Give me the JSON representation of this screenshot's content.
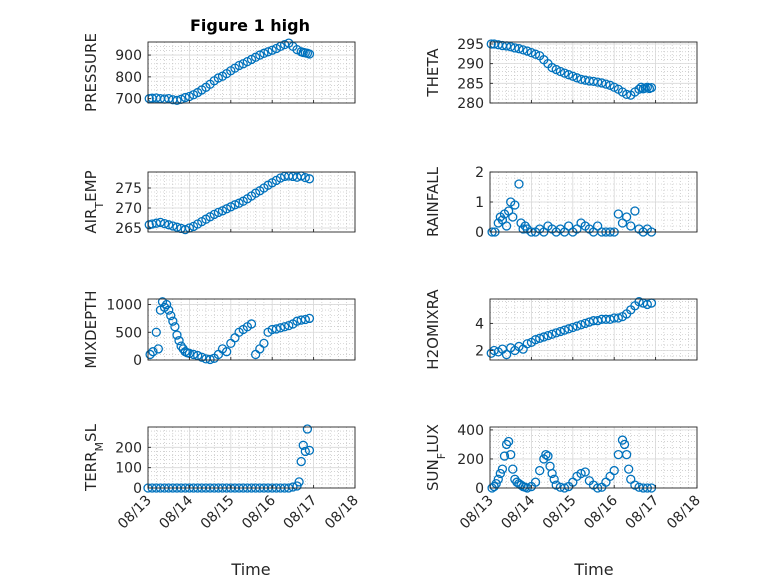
{
  "figure": {
    "title": "Figure 1 high",
    "marker_color": "#0072BD",
    "xlabel": "Time"
  },
  "chart_data": [
    {
      "type": "scatter",
      "ylabel": "PRESSURE",
      "ylim": [
        680,
        960
      ],
      "yticks": [
        700,
        800,
        900
      ],
      "xlim": [
        0,
        5
      ],
      "xticks": [
        "08/13",
        "08/14",
        "08/15",
        "08/16",
        "08/17",
        "08/18"
      ],
      "grid": true,
      "x": [
        0.03,
        0.1,
        0.2,
        0.3,
        0.4,
        0.5,
        0.6,
        0.7,
        0.8,
        0.9,
        1.0,
        1.1,
        1.2,
        1.3,
        1.4,
        1.5,
        1.6,
        1.7,
        1.8,
        1.9,
        2.0,
        2.1,
        2.2,
        2.3,
        2.4,
        2.5,
        2.6,
        2.7,
        2.8,
        2.9,
        3.0,
        3.1,
        3.2,
        3.3,
        3.4,
        3.5,
        3.6,
        3.7,
        3.75,
        3.8,
        3.85,
        3.9
      ],
      "y": [
        700,
        702,
        703,
        700,
        698,
        700,
        695,
        692,
        697,
        705,
        710,
        718,
        728,
        740,
        752,
        766,
        782,
        795,
        803,
        815,
        828,
        840,
        852,
        860,
        870,
        880,
        890,
        900,
        908,
        915,
        922,
        930,
        940,
        948,
        955,
        940,
        925,
        915,
        912,
        910,
        908,
        905
      ]
    },
    {
      "type": "scatter",
      "ylabel": "THETA",
      "ylim": [
        280,
        295.5
      ],
      "yticks": [
        280,
        285,
        290,
        295
      ],
      "xlim": [
        0,
        5
      ],
      "xticks": [
        "08/13",
        "08/14",
        "08/15",
        "08/16",
        "08/17",
        "08/18"
      ],
      "grid": true,
      "x": [
        0.03,
        0.1,
        0.2,
        0.3,
        0.4,
        0.5,
        0.6,
        0.7,
        0.8,
        0.9,
        1.0,
        1.1,
        1.2,
        1.3,
        1.4,
        1.5,
        1.6,
        1.7,
        1.8,
        1.9,
        2.0,
        2.1,
        2.2,
        2.3,
        2.4,
        2.5,
        2.6,
        2.7,
        2.8,
        2.9,
        3.0,
        3.1,
        3.2,
        3.3,
        3.4,
        3.5,
        3.6,
        3.65,
        3.7,
        3.75,
        3.8,
        3.85,
        3.9
      ],
      "y": [
        295,
        295,
        294.8,
        294.6,
        294.5,
        294.3,
        294,
        293.8,
        293.5,
        293.2,
        292.8,
        292.4,
        292,
        291,
        290,
        289,
        288.5,
        288,
        287.6,
        287.2,
        286.8,
        286.4,
        286,
        285.8,
        285.6,
        285.5,
        285.3,
        285.1,
        284.8,
        284.5,
        284,
        283.5,
        282.8,
        282.2,
        282,
        282.8,
        283.5,
        284,
        283.6,
        283.8,
        284,
        283.7,
        283.9
      ]
    },
    {
      "type": "scatter",
      "ylabel": "AIR_TEMP",
      "ylim": [
        264,
        279
      ],
      "yticks": [
        265,
        270,
        275
      ],
      "xlim": [
        0,
        5
      ],
      "xticks": [
        "08/13",
        "08/14",
        "08/15",
        "08/16",
        "08/17",
        "08/18"
      ],
      "grid": true,
      "x": [
        0.03,
        0.1,
        0.2,
        0.3,
        0.4,
        0.5,
        0.6,
        0.7,
        0.8,
        0.9,
        1.0,
        1.1,
        1.2,
        1.3,
        1.4,
        1.5,
        1.6,
        1.7,
        1.8,
        1.9,
        2.0,
        2.1,
        2.2,
        2.3,
        2.4,
        2.5,
        2.6,
        2.7,
        2.8,
        2.9,
        3.0,
        3.1,
        3.2,
        3.3,
        3.4,
        3.5,
        3.6,
        3.7,
        3.8,
        3.9
      ],
      "y": [
        265.8,
        266,
        266.2,
        266.4,
        266.1,
        265.8,
        265.5,
        265.2,
        264.9,
        264.6,
        265,
        265.4,
        266,
        266.6,
        267.2,
        267.8,
        268.4,
        268.9,
        269.3,
        269.8,
        270.3,
        270.8,
        271.2,
        271.7,
        272.3,
        273,
        273.7,
        274.3,
        275,
        275.7,
        276.3,
        276.9,
        277.5,
        277.9,
        278,
        277.9,
        277.7,
        278,
        277.6,
        277.3
      ]
    },
    {
      "type": "scatter",
      "ylabel": "RAINFALL",
      "ylim": [
        0,
        2
      ],
      "yticks": [
        0,
        1,
        2
      ],
      "xlim": [
        0,
        5
      ],
      "xticks": [
        "08/13",
        "08/14",
        "08/15",
        "08/16",
        "08/17",
        "08/18"
      ],
      "grid": true,
      "x": [
        0.05,
        0.12,
        0.2,
        0.25,
        0.3,
        0.35,
        0.4,
        0.45,
        0.5,
        0.55,
        0.6,
        0.7,
        0.75,
        0.8,
        0.85,
        0.9,
        1.0,
        1.1,
        1.2,
        1.3,
        1.4,
        1.5,
        1.6,
        1.7,
        1.8,
        1.9,
        2.0,
        2.1,
        2.2,
        2.3,
        2.4,
        2.5,
        2.6,
        2.7,
        2.8,
        2.9,
        3.0,
        3.1,
        3.2,
        3.3,
        3.4,
        3.5,
        3.6,
        3.7,
        3.8,
        3.9
      ],
      "y": [
        0,
        0,
        0.3,
        0.5,
        0.4,
        0.6,
        0.2,
        0.7,
        1.0,
        0.5,
        0.9,
        1.6,
        0.3,
        0.1,
        0.2,
        0.1,
        0,
        0,
        0.1,
        0,
        0.2,
        0.1,
        0,
        0.1,
        0,
        0.2,
        0,
        0.1,
        0.3,
        0.2,
        0.1,
        0,
        0.2,
        0,
        0,
        0,
        0,
        0.6,
        0.3,
        0.5,
        0.2,
        0.7,
        0.1,
        0,
        0.1,
        0
      ]
    },
    {
      "type": "scatter",
      "ylabel": "MIXDEPTH",
      "ylim": [
        0,
        1100
      ],
      "yticks": [
        0,
        500,
        1000
      ],
      "xlim": [
        0,
        5
      ],
      "xticks": [
        "08/13",
        "08/14",
        "08/15",
        "08/16",
        "08/17",
        "08/18"
      ],
      "grid": true,
      "x": [
        0.05,
        0.12,
        0.2,
        0.25,
        0.3,
        0.35,
        0.4,
        0.45,
        0.5,
        0.55,
        0.6,
        0.65,
        0.7,
        0.75,
        0.8,
        0.85,
        0.9,
        0.95,
        1.0,
        1.1,
        1.2,
        1.3,
        1.4,
        1.5,
        1.6,
        1.7,
        1.8,
        1.9,
        2.0,
        2.1,
        2.2,
        2.3,
        2.4,
        2.5,
        2.6,
        2.7,
        2.8,
        2.9,
        3.0,
        3.1,
        3.2,
        3.3,
        3.4,
        3.5,
        3.6,
        3.7,
        3.8,
        3.9
      ],
      "y": [
        100,
        150,
        500,
        200,
        900,
        1050,
        950,
        1000,
        900,
        800,
        700,
        600,
        450,
        350,
        250,
        200,
        150,
        130,
        120,
        100,
        80,
        50,
        20,
        10,
        30,
        100,
        200,
        150,
        300,
        400,
        500,
        550,
        600,
        650,
        100,
        200,
        300,
        500,
        550,
        560,
        580,
        600,
        620,
        650,
        700,
        720,
        730,
        750
      ]
    },
    {
      "type": "scatter",
      "ylabel": "H2OMIXRA",
      "ylim": [
        1.3,
        5.8
      ],
      "yticks": [
        2,
        4
      ],
      "xlim": [
        0,
        5
      ],
      "xticks": [
        "08/13",
        "08/14",
        "08/15",
        "08/16",
        "08/17",
        "08/18"
      ],
      "grid": true,
      "x": [
        0.03,
        0.1,
        0.2,
        0.3,
        0.4,
        0.5,
        0.6,
        0.7,
        0.8,
        0.9,
        1.0,
        1.1,
        1.2,
        1.3,
        1.4,
        1.5,
        1.6,
        1.7,
        1.8,
        1.9,
        2.0,
        2.1,
        2.2,
        2.3,
        2.4,
        2.5,
        2.6,
        2.7,
        2.8,
        2.9,
        3.0,
        3.1,
        3.2,
        3.3,
        3.4,
        3.5,
        3.6,
        3.7,
        3.8,
        3.9
      ],
      "y": [
        1.8,
        2.0,
        1.9,
        2.1,
        1.7,
        2.2,
        2.0,
        2.3,
        2.1,
        2.5,
        2.6,
        2.8,
        2.9,
        3.0,
        3.1,
        3.2,
        3.3,
        3.4,
        3.5,
        3.6,
        3.7,
        3.8,
        3.9,
        4.0,
        4.1,
        4.2,
        4.2,
        4.3,
        4.3,
        4.3,
        4.4,
        4.4,
        4.5,
        4.7,
        5.0,
        5.3,
        5.6,
        5.5,
        5.4,
        5.5
      ]
    },
    {
      "type": "scatter",
      "ylabel": "TERR_MSL",
      "ylim": [
        0,
        300
      ],
      "yticks": [
        0,
        100,
        200
      ],
      "xlim": [
        0,
        5
      ],
      "xticks": [
        "08/13",
        "08/14",
        "08/15",
        "08/16",
        "08/17",
        "08/18"
      ],
      "grid": true,
      "x": [
        0.0,
        0.1,
        0.2,
        0.3,
        0.4,
        0.5,
        0.6,
        0.7,
        0.8,
        0.9,
        1.0,
        1.1,
        1.2,
        1.3,
        1.4,
        1.5,
        1.6,
        1.7,
        1.8,
        1.9,
        2.0,
        2.1,
        2.2,
        2.3,
        2.4,
        2.5,
        2.6,
        2.7,
        2.8,
        2.9,
        3.0,
        3.1,
        3.2,
        3.3,
        3.4,
        3.5,
        3.6,
        3.65,
        3.7,
        3.75,
        3.8,
        3.85,
        3.9
      ],
      "y": [
        0,
        0,
        0,
        0,
        0,
        0,
        0,
        0,
        0,
        0,
        0,
        0,
        0,
        0,
        0,
        0,
        0,
        0,
        0,
        0,
        0,
        0,
        0,
        0,
        0,
        0,
        0,
        0,
        0,
        0,
        0,
        0,
        0,
        0,
        0,
        5,
        10,
        30,
        130,
        210,
        180,
        290,
        185
      ]
    },
    {
      "type": "scatter",
      "ylabel": "SUN_FLUX",
      "ylim": [
        0,
        420
      ],
      "yticks": [
        0,
        200,
        400
      ],
      "xlim": [
        0,
        5
      ],
      "xticks": [
        "08/13",
        "08/14",
        "08/15",
        "08/16",
        "08/17",
        "08/18"
      ],
      "grid": true,
      "x": [
        0.05,
        0.1,
        0.15,
        0.2,
        0.25,
        0.3,
        0.35,
        0.4,
        0.45,
        0.5,
        0.55,
        0.6,
        0.65,
        0.7,
        0.75,
        0.8,
        0.85,
        0.9,
        1.0,
        1.1,
        1.2,
        1.3,
        1.35,
        1.4,
        1.45,
        1.5,
        1.55,
        1.6,
        1.7,
        1.8,
        1.9,
        2.0,
        2.1,
        2.2,
        2.3,
        2.4,
        2.5,
        2.6,
        2.7,
        2.8,
        2.9,
        3.0,
        3.1,
        3.2,
        3.25,
        3.3,
        3.35,
        3.4,
        3.5,
        3.6,
        3.7,
        3.8,
        3.9
      ],
      "y": [
        0,
        10,
        30,
        60,
        100,
        130,
        220,
        300,
        320,
        230,
        130,
        60,
        40,
        30,
        20,
        10,
        5,
        0,
        10,
        40,
        120,
        200,
        230,
        220,
        150,
        100,
        60,
        20,
        5,
        0,
        10,
        40,
        80,
        100,
        110,
        50,
        20,
        0,
        5,
        40,
        80,
        120,
        230,
        330,
        300,
        230,
        130,
        60,
        20,
        5,
        0,
        0,
        0
      ]
    }
  ]
}
